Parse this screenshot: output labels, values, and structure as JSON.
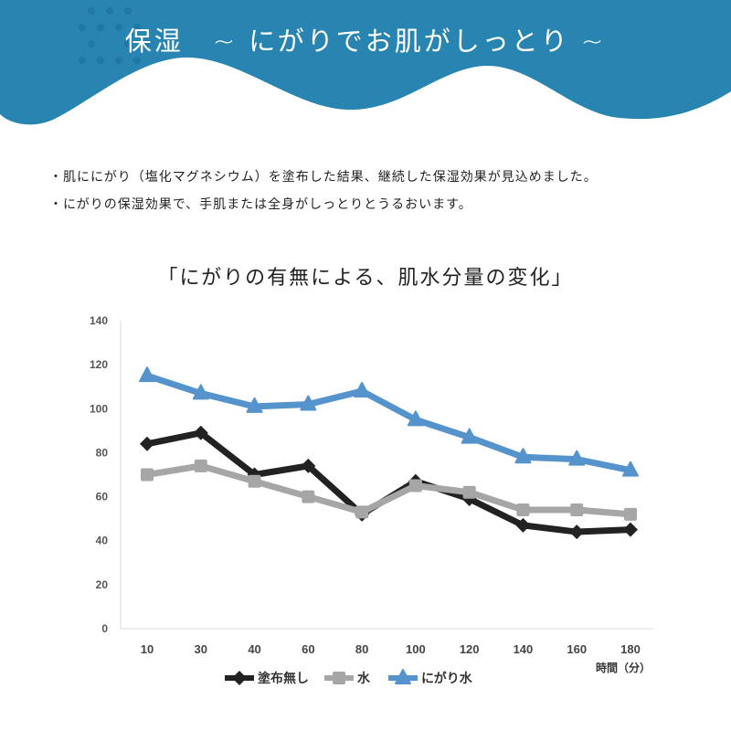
{
  "header": {
    "title": "保湿　~ にがりでお肌がしっとり ~",
    "color": "#2884b1"
  },
  "bullets": [
    "・肌ににがり（塩化マグネシウム）を塗布した結果、継続した保湿効果が見込めました。",
    "・にがりの保湿効果で、手肌または全身がしっとりとうるおいます。"
  ],
  "chart_data": {
    "type": "line",
    "title": "「にがりの有無による、肌水分量の変化」",
    "xlabel": "時間（分）",
    "ylabel": "",
    "categories": [
      "10",
      "30",
      "40",
      "60",
      "80",
      "100",
      "120",
      "140",
      "160",
      "180"
    ],
    "ylim": [
      0,
      140
    ],
    "yticks": [
      0,
      20,
      40,
      60,
      80,
      100,
      120,
      140
    ],
    "grid": false,
    "legend": "bottom",
    "series": [
      {
        "name": "塗布無し",
        "color": "#222222",
        "marker": "diamond",
        "values": [
          84,
          89,
          70,
          74,
          52,
          67,
          59,
          47,
          44,
          45
        ]
      },
      {
        "name": "水",
        "color": "#a6a6a6",
        "marker": "square",
        "values": [
          70,
          74,
          67,
          60,
          53,
          65,
          62,
          54,
          54,
          52
        ]
      },
      {
        "name": "にがり水",
        "color": "#5593cc",
        "marker": "triangle",
        "values": [
          115,
          107,
          101,
          102,
          108,
          95,
          87,
          78,
          77,
          72
        ]
      }
    ]
  }
}
